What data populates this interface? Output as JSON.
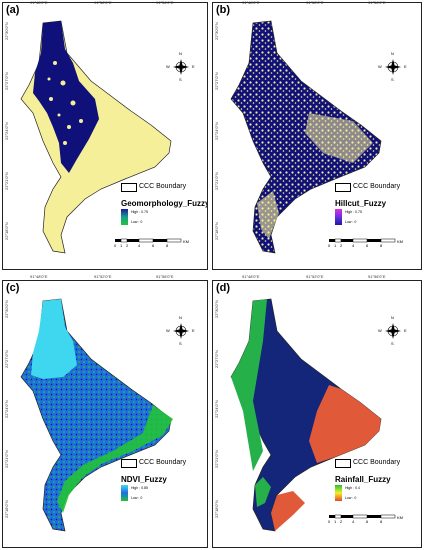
{
  "panels": [
    {
      "label": "(a)",
      "layer": "Geomorphology_Fuzzy",
      "high": "High : 0.75",
      "low": "Low : 0",
      "fill": "#f5ef9a",
      "ramp": [
        "#1a1aa0",
        "#1c9e8c",
        "#22c23a"
      ]
    },
    {
      "label": "(b)",
      "layer": "Hillcut_Fuzzy",
      "high": "High : 0.75",
      "low": "Low : 0",
      "fill": "#f5ef9a",
      "ramp": [
        "#e030e0",
        "#6a30e0",
        "#1a1aa0"
      ]
    },
    {
      "label": "(c)",
      "layer": "NDVI_Fuzzy",
      "high": "High : 0.85",
      "low": "Low : 0",
      "fill": "#1e6ee0",
      "ramp": [
        "#3fd7f0",
        "#1e6ee0",
        "#22c23a"
      ]
    },
    {
      "label": "(d)",
      "layer": "Rainfall_Fuzzy",
      "high": "High : 0.4",
      "low": "Low : 0",
      "fill": "#13267a",
      "ramp": [
        "#22c23a",
        "#f5ef2a",
        "#e04a2a"
      ]
    }
  ],
  "boundary_label": "CCC Boundary",
  "lon_ticks": [
    "91°48'0\"E",
    "91°52'0\"E",
    "91°56'0\"E"
  ],
  "lat_ticks": [
    "22°30'0\"N",
    "22°27'0\"N",
    "22°24'0\"N",
    "22°21'0\"N",
    "22°18'0\"N"
  ],
  "north_arrow": {
    "n": "N",
    "s": "S",
    "e": "E",
    "w": "W"
  },
  "scale_labels": [
    "0",
    "1",
    "2",
    "4",
    "6",
    "8"
  ],
  "scale_unit": "KM",
  "colors": {
    "dark_blue": "#10107a",
    "yellow": "#f5ef9a",
    "cyan": "#3fd7f0",
    "blue": "#1e6ee0",
    "green": "#22c23a",
    "rain_green": "#26b04a",
    "rain_navy": "#13267a",
    "rain_orange": "#e05a3a"
  }
}
